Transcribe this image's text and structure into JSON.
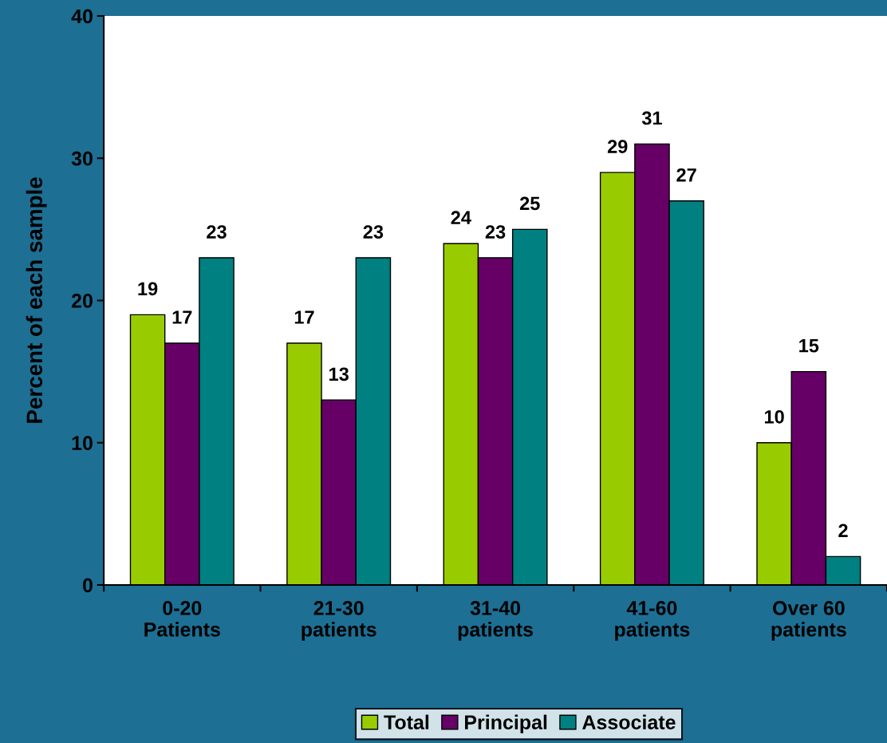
{
  "chart_data": {
    "type": "bar",
    "ylabel": "Percent of each sample",
    "categories": [
      "0-20\nPatients",
      "21-30\npatients",
      "31-40\npatients",
      "41-60\npatients",
      "Over 60\npatients"
    ],
    "series": [
      {
        "name": "Total",
        "color": "#99cc00",
        "values": [
          19,
          17,
          24,
          29,
          10
        ]
      },
      {
        "name": "Principal",
        "color": "#660066",
        "values": [
          17,
          13,
          23,
          31,
          15
        ]
      },
      {
        "name": "Associate",
        "color": "#008080",
        "values": [
          23,
          23,
          25,
          27,
          2
        ]
      }
    ],
    "ylim": [
      0,
      40
    ],
    "yticks": [
      0,
      10,
      20,
      30,
      40
    ],
    "grid": false,
    "legend": "bottom",
    "data_labels": true
  }
}
